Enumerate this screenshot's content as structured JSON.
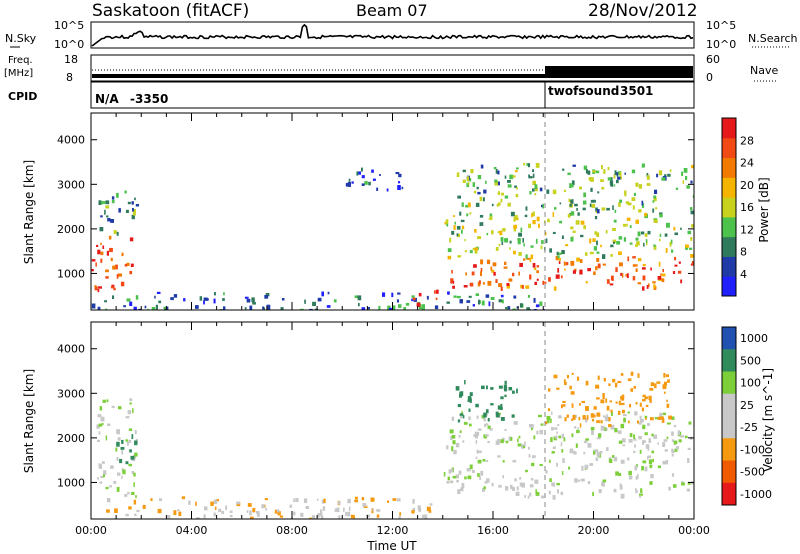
{
  "header": {
    "station": "Saskatoon (fitACF)",
    "beam": "Beam 07",
    "date": "28/Nov/2012"
  },
  "noise_panel": {
    "left_label": "N.Sky",
    "right_label": "N.Search",
    "left_ticks": [
      "10^5",
      "10^0"
    ],
    "right_ticks": [
      "10^5",
      "10^0"
    ]
  },
  "freq_panel": {
    "left_label": "Freq.",
    "left_unit": "[MHz]",
    "left_ticks": [
      "18",
      "8"
    ],
    "right_label": "Nave",
    "right_ticks": [
      "60",
      "0"
    ]
  },
  "cpid_panel": {
    "label": "CPID",
    "segments": [
      {
        "name": "N/A",
        "id": "-3350",
        "start_hour": 0
      },
      {
        "name": "twofsound",
        "id": "3501",
        "start_hour": 18
      }
    ]
  },
  "colors": {
    "power": [
      "#2020ff",
      "#203aa8",
      "#2f7a5c",
      "#4cc24c",
      "#c8d21e",
      "#f5b400",
      "#f27a00",
      "#f24a14",
      "#e61a1a"
    ],
    "velocity": [
      "#e61a1a",
      "#f25a00",
      "#f59a10",
      "#c8c8c8",
      "#c8c8c8",
      "#7dcf3a",
      "#2f8a5c",
      "#2050b0"
    ]
  },
  "chart_data": [
    {
      "type": "heatmap",
      "title": "",
      "xlabel": "",
      "ylabel": "Slant Range [km]",
      "xlim": [
        0,
        24
      ],
      "ylim": [
        180,
        4600
      ],
      "x_tick_labels": [
        "00:00",
        "04:00",
        "08:00",
        "12:00",
        "16:00",
        "20:00",
        "00:00"
      ],
      "y_ticks": [
        1000,
        2000,
        3000,
        4000
      ],
      "colorbar": {
        "label": "Power [dB]",
        "ticks": [
          4,
          8,
          12,
          16,
          20,
          24,
          28
        ],
        "range": [
          0,
          32
        ]
      },
      "regions": [
        {
          "t0": 0.0,
          "t1": 1.6,
          "r0": 650,
          "r1": 1900,
          "level": 28
        },
        {
          "t0": 0.2,
          "t1": 1.8,
          "r0": 1900,
          "r1": 2900,
          "level": 10
        },
        {
          "t0": 10.0,
          "t1": 12.5,
          "r0": 2900,
          "r1": 3400,
          "level": 6
        },
        {
          "t0": 0.0,
          "t1": 18.0,
          "r0": 200,
          "r1": 600,
          "level": 8
        },
        {
          "t0": 12.8,
          "t1": 14.0,
          "r0": 280,
          "r1": 650,
          "level": 28
        },
        {
          "t0": 14.0,
          "t1": 24.0,
          "r0": 700,
          "r1": 1400,
          "level": 26
        },
        {
          "t0": 14.0,
          "t1": 24.0,
          "r0": 1400,
          "r1": 2400,
          "level": 14
        },
        {
          "t0": 14.5,
          "t1": 24.0,
          "r0": 2400,
          "r1": 3500,
          "level": 12
        }
      ]
    },
    {
      "type": "heatmap",
      "title": "",
      "xlabel": "Time UT",
      "ylabel": "Slant Range [km]",
      "xlim": [
        0,
        24
      ],
      "ylim": [
        180,
        4600
      ],
      "x_tick_labels": [
        "00:00",
        "04:00",
        "08:00",
        "12:00",
        "16:00",
        "20:00",
        "00:00"
      ],
      "y_ticks": [
        1000,
        2000,
        3000,
        4000
      ],
      "colorbar": {
        "label": "Velocity [m s^-1]",
        "ticks": [
          1000,
          500,
          100,
          25,
          -25,
          -100,
          -500,
          -1000
        ],
        "range": [
          -1000,
          1000
        ]
      },
      "regions": [
        {
          "t0": 0.2,
          "t1": 1.8,
          "r0": 700,
          "r1": 2900,
          "level": 0
        },
        {
          "t0": 1.0,
          "t1": 1.8,
          "r0": 1400,
          "r1": 2100,
          "level": 300
        },
        {
          "t0": 0.5,
          "t1": 13.5,
          "r0": 200,
          "r1": 700,
          "level": -80
        },
        {
          "t0": 14.0,
          "t1": 24.0,
          "r0": 700,
          "r1": 2600,
          "level": 0
        },
        {
          "t0": 18.0,
          "t1": 23.0,
          "r0": 2300,
          "r1": 3500,
          "level": -300
        },
        {
          "t0": 14.5,
          "t1": 17.0,
          "r0": 2400,
          "r1": 3300,
          "level": 200
        }
      ]
    }
  ]
}
